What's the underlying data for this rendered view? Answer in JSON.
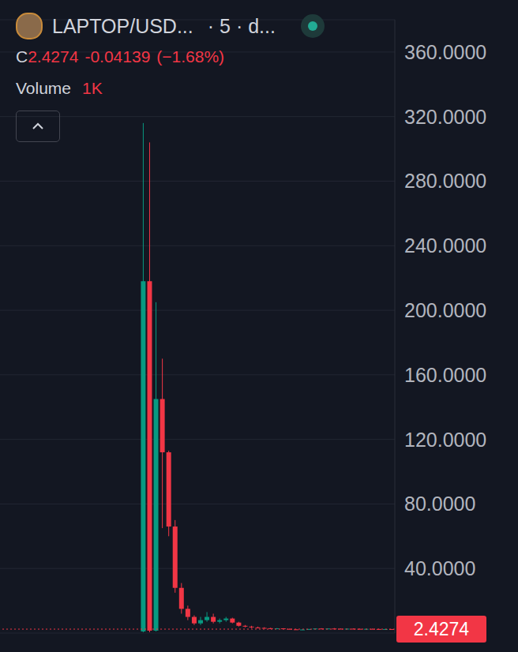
{
  "header": {
    "symbol": "LAPTOP/USD...",
    "interval": "· 5 · d...",
    "close_label": "C",
    "close": "2.4274",
    "change": "-0.04139",
    "change_pct": "(−1.68%)",
    "volume_label": "Volume",
    "volume": "1K"
  },
  "chart_data": {
    "type": "candlestick",
    "tick_labels": "y",
    "grid": true,
    "last_price": 2.4274,
    "last_price_color": "#f23645",
    "categories": [
      null,
      null,
      null,
      null,
      null,
      null,
      null,
      null,
      null,
      null,
      null,
      null,
      null,
      null,
      null,
      null,
      null,
      null,
      null,
      null,
      null,
      null,
      null,
      null,
      null,
      null,
      null,
      null,
      null,
      null,
      null,
      null,
      null,
      null,
      null,
      null,
      null,
      null,
      null,
      null,
      null,
      null,
      null,
      null,
      null,
      null,
      null,
      null,
      null,
      null,
      null,
      null,
      null,
      null,
      null,
      null,
      null,
      null,
      null,
      null,
      null,
      null
    ],
    "open": [
      null,
      null,
      null,
      null,
      null,
      null,
      null,
      null,
      null,
      null,
      null,
      null,
      null,
      null,
      null,
      null,
      null,
      null,
      null,
      null,
      null,
      null,
      1,
      218,
      1.5,
      145,
      112,
      66,
      28,
      15,
      10,
      6,
      8,
      10,
      7,
      8,
      9,
      6.5,
      4.5,
      4,
      3.5,
      3.2,
      3,
      2.8,
      2.9,
      2.6,
      2.3,
      2.1,
      2.2,
      2.5,
      2.8,
      2.6,
      2.8,
      2.7,
      2.5,
      2.7,
      2.6,
      2.5,
      2.6,
      2.5,
      2.4,
      2.47
    ],
    "high": [
      null,
      null,
      null,
      null,
      null,
      null,
      null,
      null,
      null,
      null,
      null,
      null,
      null,
      null,
      null,
      null,
      null,
      null,
      null,
      null,
      null,
      null,
      316,
      304,
      205,
      170,
      113,
      70,
      31,
      17,
      11,
      10,
      13,
      12,
      9,
      10,
      9.5,
      7,
      5,
      4.5,
      4,
      3.6,
      3.3,
      3.1,
      3,
      2.8,
      2.5,
      2.4,
      2.6,
      2.9,
      3,
      2.9,
      3.1,
      2.9,
      2.8,
      2.9,
      2.8,
      2.7,
      2.8,
      2.6,
      2.6,
      2.5
    ],
    "low": [
      null,
      null,
      null,
      null,
      null,
      null,
      null,
      null,
      null,
      null,
      null,
      null,
      null,
      null,
      null,
      null,
      null,
      null,
      null,
      null,
      null,
      null,
      0.5,
      0.5,
      1,
      65,
      60,
      25,
      12,
      8,
      5,
      5,
      7,
      6,
      6,
      7,
      6,
      4,
      3.5,
      3,
      3,
      2.8,
      2.6,
      2.5,
      2.4,
      2.2,
      2,
      1.9,
      2.1,
      2.4,
      2.5,
      2.5,
      2.6,
      2.4,
      2.4,
      2.5,
      2.4,
      2.3,
      2.4,
      2.3,
      2.3,
      2.38
    ],
    "close": [
      null,
      null,
      null,
      null,
      null,
      null,
      null,
      null,
      null,
      null,
      null,
      null,
      null,
      null,
      null,
      null,
      null,
      null,
      null,
      null,
      null,
      null,
      218,
      1.5,
      145,
      112,
      66,
      28,
      15,
      10,
      6,
      8,
      10,
      7,
      8,
      9,
      6.5,
      4.5,
      4,
      3.5,
      3.2,
      3,
      2.8,
      2.9,
      2.6,
      2.3,
      2.1,
      2.2,
      2.5,
      2.8,
      2.6,
      2.8,
      2.7,
      2.5,
      2.7,
      2.6,
      2.5,
      2.6,
      2.5,
      2.4,
      2.47,
      2.4274
    ],
    "colors": [
      null,
      null,
      null,
      null,
      null,
      null,
      null,
      null,
      null,
      null,
      null,
      null,
      null,
      null,
      null,
      null,
      null,
      null,
      null,
      null,
      null,
      null,
      "#089981",
      "#f23645",
      "#089981",
      "#f23645",
      "#f23645",
      "#f23645",
      "#f23645",
      "#f23645",
      "#f23645",
      "#089981",
      "#089981",
      "#f23645",
      "#089981",
      "#089981",
      "#f23645",
      "#f23645",
      "#f23645",
      "#f23645",
      "#f23645",
      "#f23645",
      "#f23645",
      "#089981",
      "#f23645",
      "#f23645",
      "#f23645",
      "#089981",
      "#089981",
      "#089981",
      "#f23645",
      "#089981",
      "#f23645",
      "#f23645",
      "#089981",
      "#f23645",
      "#f23645",
      "#089981",
      "#f23645",
      "#f23645",
      "#089981",
      "#f23645"
    ],
    "ylim": [
      0,
      380
    ],
    "yticks": [
      {
        "value": 40,
        "label": "40.0000"
      },
      {
        "value": 80,
        "label": "80.0000"
      },
      {
        "value": 120,
        "label": "120.0000"
      },
      {
        "value": 160,
        "label": "160.0000"
      },
      {
        "value": 200,
        "label": "200.0000"
      },
      {
        "value": 240,
        "label": "240.0000"
      },
      {
        "value": 280,
        "label": "280.0000"
      },
      {
        "value": 320,
        "label": "320.0000"
      },
      {
        "value": 360,
        "label": "360.0000"
      }
    ]
  }
}
